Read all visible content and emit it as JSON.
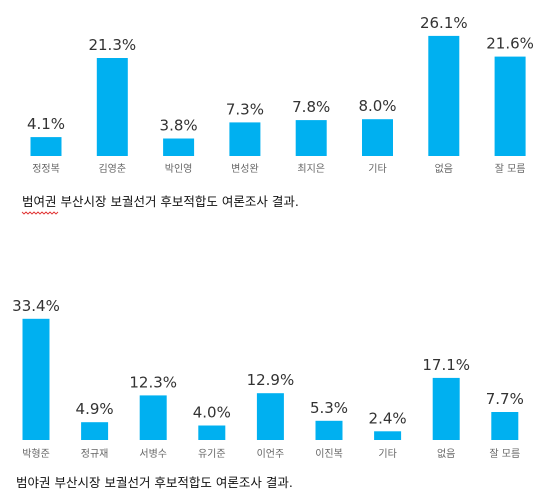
{
  "chart_data": [
    {
      "type": "bar",
      "categories": [
        "정정복",
        "김영춘",
        "박인영",
        "변성완",
        "최지은",
        "기타",
        "없음",
        "잘 모름"
      ],
      "values": [
        4.1,
        21.3,
        3.8,
        7.3,
        7.8,
        8.0,
        26.1,
        21.6
      ],
      "value_labels": [
        "4.1%",
        "21.3%",
        "3.8%",
        "7.3%",
        "7.8%",
        "8.0%",
        "26.1%",
        "21.6%"
      ],
      "caption": "범여권 부산시장 보궐선거 후보적합도 여론조사 결과.",
      "ylim": [
        0,
        30
      ],
      "grid": false,
      "bar_color": "#00b0f0"
    },
    {
      "type": "bar",
      "categories": [
        "박형준",
        "정규재",
        "서병수",
        "유기준",
        "이언주",
        "이진복",
        "기타",
        "없음",
        "잘 모름"
      ],
      "values": [
        33.4,
        4.9,
        12.3,
        4.0,
        12.9,
        5.3,
        2.4,
        17.1,
        7.7
      ],
      "value_labels": [
        "33.4%",
        "4.9%",
        "12.3%",
        "4.0%",
        "12.9%",
        "5.3%",
        "2.4%",
        "17.1%",
        "7.7%"
      ],
      "caption": "범야권 부산시장 보궐선거 후보적합도 여론조사 결과.",
      "ylim": [
        0,
        36
      ],
      "grid": false,
      "bar_color": "#00b0f0"
    }
  ]
}
